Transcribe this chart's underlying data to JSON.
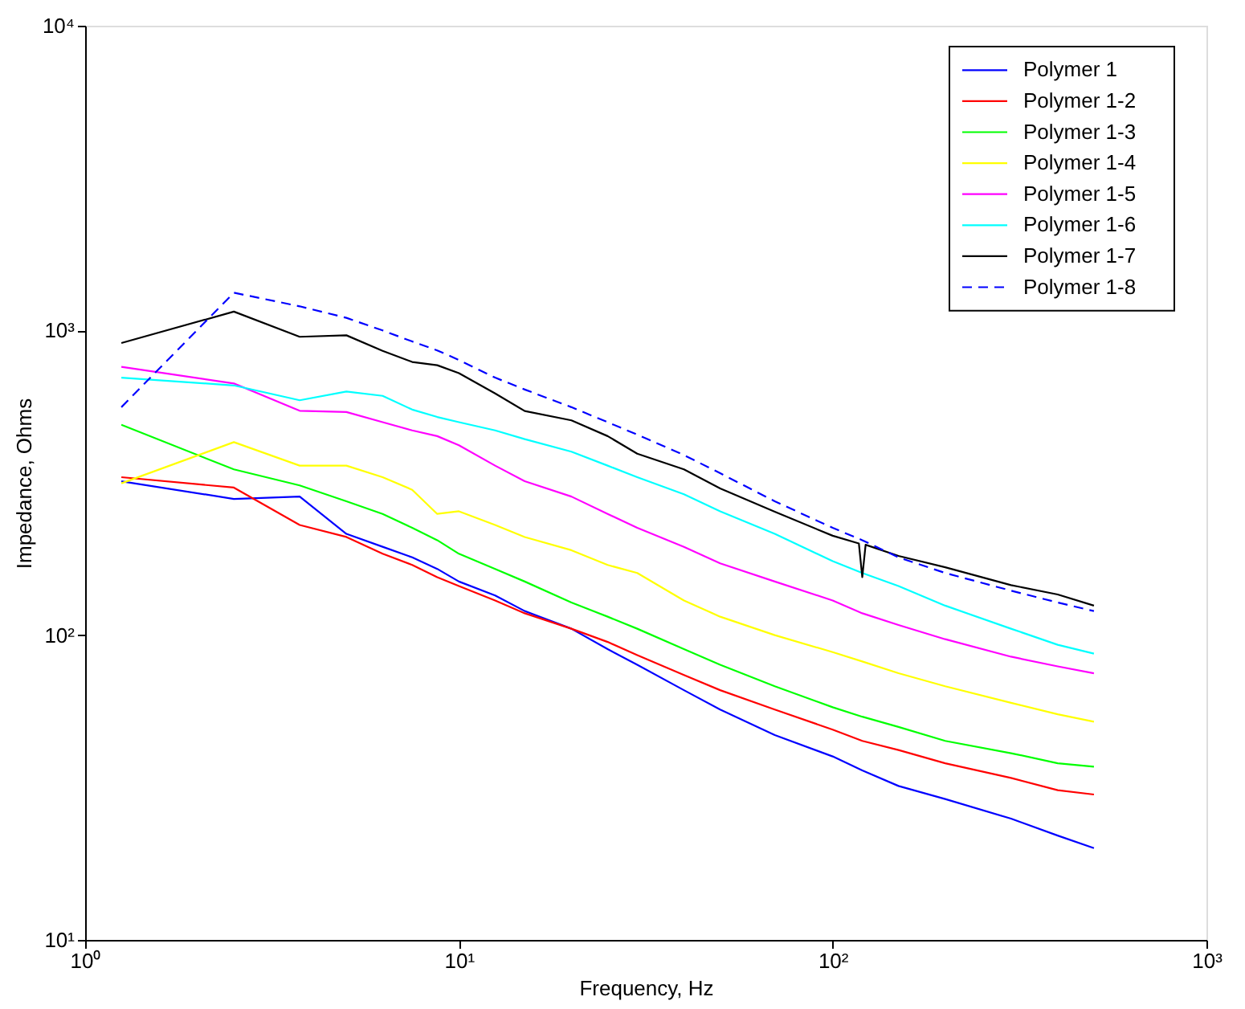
{
  "chart_data": {
    "type": "line",
    "xlabel": "Frequency, Hz",
    "ylabel": "Impedance, Ohms",
    "log": "xy",
    "grid": false,
    "legend": "top right",
    "marker": "none",
    "xlim": [
      1,
      1000
    ],
    "ylim": [
      10,
      10000
    ],
    "xticks": [
      {
        "value": 1,
        "label": "10⁰"
      },
      {
        "value": 10,
        "label": "10¹"
      },
      {
        "value": 100,
        "label": "10²"
      },
      {
        "value": 1000,
        "label": "10³"
      }
    ],
    "yticks": [
      {
        "value": 10,
        "label": "10¹"
      },
      {
        "value": 100,
        "label": "10²"
      },
      {
        "value": 1000,
        "label": "10³"
      },
      {
        "value": 10000,
        "label": "10⁴"
      }
    ],
    "x": [
      1.25,
      2.5,
      3.75,
      5,
      6.25,
      7.5,
      8.75,
      10,
      12.5,
      15,
      20,
      25,
      30,
      40,
      50,
      70,
      100,
      120,
      150,
      200,
      300,
      400,
      500
    ],
    "series": [
      {
        "name": "Polymer 1",
        "color": "#0000ff",
        "line_style": "solid",
        "values": [
          320,
          280,
          285,
          215,
          195,
          180,
          165,
          150,
          135,
          120,
          105,
          90,
          80,
          66,
          57,
          47,
          40,
          36,
          32,
          29,
          25,
          22,
          20
        ]
      },
      {
        "name": "Polymer 1-2",
        "color": "#ff0000",
        "line_style": "solid",
        "values": [
          330,
          305,
          230,
          210,
          185,
          170,
          155,
          145,
          130,
          118,
          105,
          95,
          86,
          74,
          66,
          57,
          49,
          45,
          42,
          38,
          34,
          31,
          30
        ]
      },
      {
        "name": "Polymer 1-3",
        "color": "#00ff00",
        "line_style": "solid",
        "values": [
          490,
          350,
          310,
          275,
          250,
          225,
          205,
          185,
          165,
          150,
          128,
          115,
          105,
          90,
          80,
          68,
          58,
          54,
          50,
          45,
          41,
          38,
          37
        ]
      },
      {
        "name": "Polymer 1-4",
        "color": "#ffff00",
        "line_style": "solid",
        "values": [
          315,
          430,
          360,
          360,
          330,
          300,
          250,
          255,
          230,
          210,
          190,
          170,
          160,
          130,
          115,
          100,
          88,
          82,
          75,
          68,
          60,
          55,
          52
        ]
      },
      {
        "name": "Polymer 1-5",
        "color": "#ff00ff",
        "line_style": "solid",
        "values": [
          760,
          670,
          545,
          540,
          500,
          470,
          450,
          420,
          360,
          320,
          285,
          250,
          225,
          195,
          172,
          150,
          130,
          118,
          108,
          97,
          85,
          79,
          75
        ]
      },
      {
        "name": "Polymer 1-6",
        "color": "#00ffff",
        "line_style": "solid",
        "values": [
          700,
          660,
          590,
          630,
          610,
          550,
          520,
          500,
          470,
          440,
          400,
          360,
          330,
          290,
          255,
          215,
          175,
          160,
          145,
          125,
          105,
          93,
          87
        ]
      },
      {
        "name": "Polymer 1-7",
        "color": "#000000",
        "line_style": "solid",
        "x": [
          1.25,
          2.5,
          3.75,
          5,
          6.25,
          7.5,
          8.75,
          10,
          12.5,
          15,
          20,
          25,
          30,
          40,
          50,
          70,
          100,
          117.5,
          120,
          122.5,
          150,
          200,
          300,
          400,
          500
        ],
        "values": [
          909,
          1153,
          953,
          964,
          857,
          788,
          769,
          724,
          621,
          544,
          507,
          450,
          394,
          350,
          303,
          254,
          212,
          200,
          155,
          198,
          182,
          167,
          146,
          136,
          125
        ]
      },
      {
        "name": "Polymer 1-8",
        "color": "#0000ff",
        "line_style": "dashed",
        "values": [
          560,
          1330,
          1200,
          1100,
          1000,
          920,
          860,
          800,
          700,
          640,
          560,
          500,
          455,
          390,
          340,
          275,
          225,
          205,
          180,
          160,
          140,
          128,
          120
        ]
      }
    ]
  }
}
